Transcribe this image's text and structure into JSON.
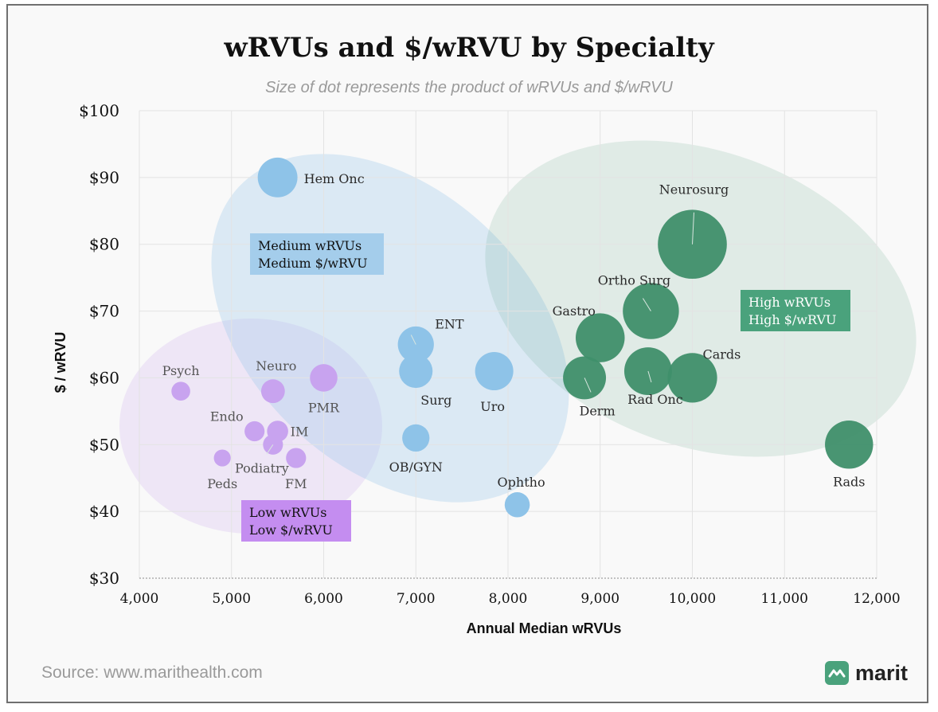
{
  "header": {
    "title": "wRVUs and $/wRVU by Specialty",
    "subtitle": "Size of dot represents the product of wRVUs and $/wRVU"
  },
  "footer": {
    "source": "Source: www.marithealth.com",
    "logo_text": "marit"
  },
  "colors": {
    "low": "#c8a3ef",
    "medium": "#8ec3e8",
    "high": "#3f8f6a",
    "low_box": "#c48df0",
    "medium_box": "#a4cdeb",
    "high_box": "#4aa27c"
  },
  "chart_data": {
    "type": "scatter",
    "title": "wRVUs and $/wRVU by Specialty",
    "subtitle": "Size of dot represents the product of wRVUs and $/wRVU",
    "xlabel": "Annual Median wRVUs",
    "ylabel": "$ / wRVU",
    "xlim": [
      4000,
      12000
    ],
    "ylim": [
      30,
      100
    ],
    "x_ticks": [
      "4,000",
      "5,000",
      "6,000",
      "7,000",
      "8,000",
      "9,000",
      "10,000",
      "11,000",
      "12,000"
    ],
    "y_ticks": [
      "$30",
      "$40",
      "$50",
      "$60",
      "$70",
      "$80",
      "$90",
      "$100"
    ],
    "grid": true,
    "groups": [
      {
        "name": "Low",
        "box_lines": [
          "Low wRVUs",
          "Low $/wRVU"
        ],
        "points": [
          {
            "label": "Psych",
            "x": 4450,
            "y": 58
          },
          {
            "label": "Neuro",
            "x": 5450,
            "y": 58
          },
          {
            "label": "PMR",
            "x": 6000,
            "y": 60
          },
          {
            "label": "Endo",
            "x": 5250,
            "y": 52
          },
          {
            "label": "IM",
            "x": 5500,
            "y": 52
          },
          {
            "label": "Podiatry",
            "x": 5450,
            "y": 50
          },
          {
            "label": "Peds",
            "x": 4900,
            "y": 48
          },
          {
            "label": "FM",
            "x": 5700,
            "y": 48
          }
        ]
      },
      {
        "name": "Medium",
        "box_lines": [
          "Medium wRVUs",
          "Medium $/wRVU"
        ],
        "points": [
          {
            "label": "Hem Onc",
            "x": 5500,
            "y": 90
          },
          {
            "label": "ENT",
            "x": 7000,
            "y": 65
          },
          {
            "label": "Surg",
            "x": 7000,
            "y": 61
          },
          {
            "label": "Uro",
            "x": 7850,
            "y": 61
          },
          {
            "label": "OB/GYN",
            "x": 7000,
            "y": 51
          },
          {
            "label": "Ophtho",
            "x": 8100,
            "y": 41
          }
        ]
      },
      {
        "name": "High",
        "box_lines": [
          "High wRVUs",
          "High $/wRVU"
        ],
        "points": [
          {
            "label": "Neurosurg",
            "x": 10000,
            "y": 80
          },
          {
            "label": "Ortho Surg",
            "x": 9550,
            "y": 70
          },
          {
            "label": "Gastro",
            "x": 9000,
            "y": 66
          },
          {
            "label": "Derm",
            "x": 8830,
            "y": 60
          },
          {
            "label": "Rad Onc",
            "x": 9520,
            "y": 61
          },
          {
            "label": "Cards",
            "x": 10000,
            "y": 60
          },
          {
            "label": "Rads",
            "x": 11700,
            "y": 50
          }
        ]
      }
    ]
  }
}
